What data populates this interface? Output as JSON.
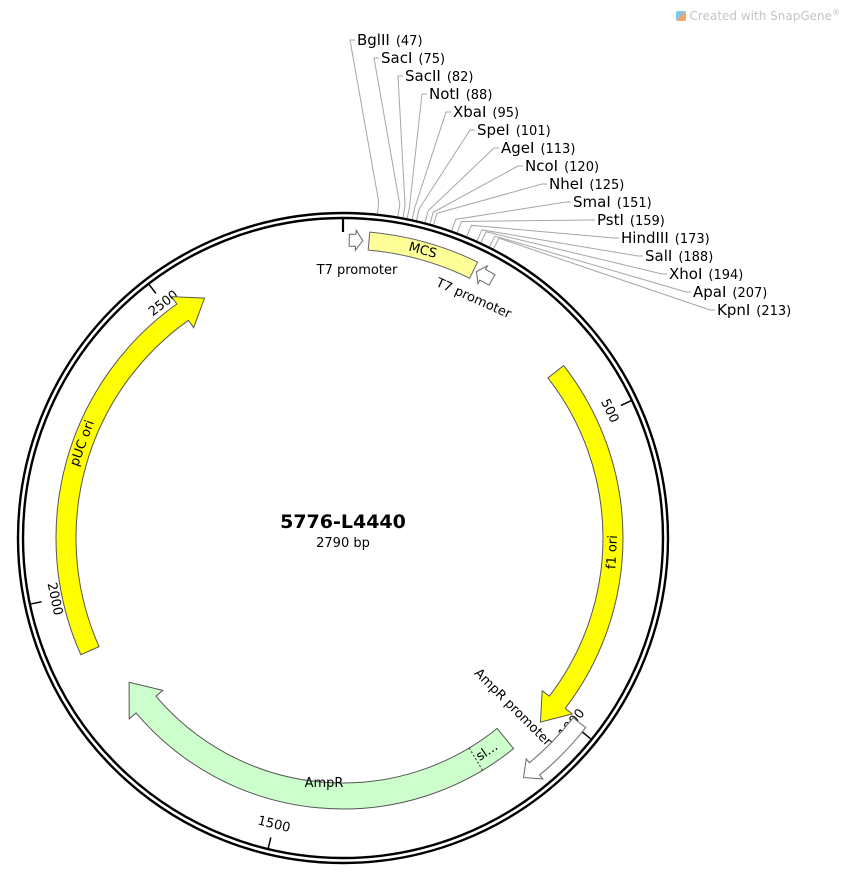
{
  "watermark": {
    "prefix": "Created with SnapGene",
    "suffix": "®"
  },
  "plasmid": {
    "name": "5776-L4440",
    "length_label": "2790 bp",
    "length": 2790
  },
  "sites": [
    {
      "name": "BglII",
      "pos": "(47)",
      "bp": 47
    },
    {
      "name": "SacI",
      "pos": "(75)",
      "bp": 75
    },
    {
      "name": "SacII",
      "pos": "(82)",
      "bp": 82
    },
    {
      "name": "NotI",
      "pos": "(88)",
      "bp": 88
    },
    {
      "name": "XbaI",
      "pos": "(95)",
      "bp": 95
    },
    {
      "name": "SpeI",
      "pos": "(101)",
      "bp": 101
    },
    {
      "name": "AgeI",
      "pos": "(113)",
      "bp": 113
    },
    {
      "name": "NcoI",
      "pos": "(120)",
      "bp": 120
    },
    {
      "name": "NheI",
      "pos": "(125)",
      "bp": 125
    },
    {
      "name": "SmaI",
      "pos": "(151)",
      "bp": 151
    },
    {
      "name": "PstI",
      "pos": "(159)",
      "bp": 159
    },
    {
      "name": "HindIII",
      "pos": "(173)",
      "bp": 173
    },
    {
      "name": "SalI",
      "pos": "(188)",
      "bp": 188
    },
    {
      "name": "XhoI",
      "pos": "(194)",
      "bp": 194
    },
    {
      "name": "ApaI",
      "pos": "(207)",
      "bp": 207
    },
    {
      "name": "KpnI",
      "pos": "(213)",
      "bp": 213
    }
  ],
  "ticks": [
    {
      "label": "500",
      "bp": 500
    },
    {
      "label": "1000",
      "bp": 1000
    },
    {
      "label": "1500",
      "bp": 1500
    },
    {
      "label": "2000",
      "bp": 2000
    },
    {
      "label": "2500",
      "bp": 2500
    }
  ],
  "features": {
    "mcs": "MCS",
    "t7_left": "T7 promoter",
    "t7_right": "T7 promoter",
    "f1": "f1 ori",
    "ampr_promoter": "AmpR promoter",
    "signal": "sl...",
    "ampr": "AmpR",
    "puc": "pUC ori"
  },
  "colors": {
    "origin": "#ffff00",
    "mcs": "#ffff99",
    "ampr": "#ccffcc",
    "promoter": "#ffffff"
  }
}
